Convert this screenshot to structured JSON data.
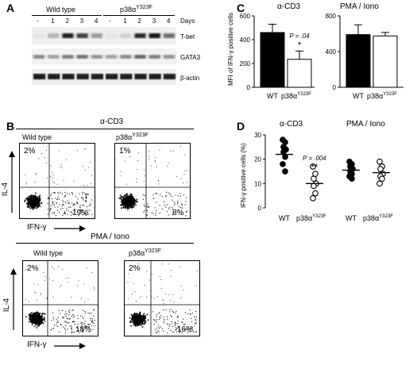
{
  "panel_a": {
    "label": "A",
    "group_wt": "Wild type",
    "group_mut": "p38α",
    "group_mut_sup": "Y323F",
    "days_label": "Days",
    "lane_labels": [
      "-",
      "1",
      "2",
      "3",
      "4",
      "-",
      "1",
      "2",
      "3",
      "4"
    ],
    "band_labels": [
      "T-bet",
      "GATA3",
      "β-actin"
    ]
  },
  "panel_b": {
    "label": "B",
    "stim_top": "α-CD3",
    "stim_bottom": "PMA / Iono",
    "ylabel": "IL-4",
    "xlabel": "IFN-γ",
    "plots": [
      {
        "title": "Wild type",
        "sup": "",
        "ul": "2%",
        "lr": "19%"
      },
      {
        "title": "p38α",
        "sup": "Y323F",
        "ul": "1%",
        "lr": "8%"
      },
      {
        "title": "Wild type",
        "sup": "",
        "ul": "2%",
        "lr": "18%"
      },
      {
        "title": "p38α",
        "sup": "Y323F",
        "ul": "2%",
        "lr": "16%"
      }
    ]
  },
  "panel_c": {
    "label": "C",
    "ylabel": "MFI of IFN-γ positive cells",
    "pvalue": "P = .04",
    "star": "*",
    "wt": "WT",
    "mut": "p38α",
    "mut_sup": "Y323F"
  },
  "panel_d": {
    "label": "D",
    "ylabel": "IFN-γ positive cells (%)",
    "pvalue": "P = .004",
    "star": "**",
    "wt": "WT",
    "mut": "p38α",
    "mut_sup": "Y323F"
  },
  "chart_data": [
    {
      "type": "bar",
      "title": "α-CD3",
      "categories": [
        "WT",
        "p38αY323F"
      ],
      "values": [
        460,
        235
      ],
      "errors": [
        70,
        70
      ],
      "yticks": [
        0,
        200,
        400,
        600
      ],
      "ylim": [
        0,
        600
      ],
      "ylabel": "MFI of IFN-γ positive cells",
      "colors": [
        "#000000",
        "#ffffff"
      ]
    },
    {
      "type": "bar",
      "title": "PMA / Iono",
      "categories": [
        "WT",
        "p38αY323F"
      ],
      "values": [
        590,
        575
      ],
      "errors": [
        110,
        40
      ],
      "yticks": [
        0,
        400,
        800
      ],
      "ylim": [
        0,
        800
      ],
      "colors": [
        "#000000",
        "#ffffff"
      ]
    },
    {
      "type": "scatter",
      "title": "α-CD3",
      "ylabel": "IFN-γ positive cells (%)",
      "yticks": [
        0,
        10,
        20,
        30
      ],
      "ylim": [
        0,
        30
      ],
      "series": [
        {
          "category": "WT",
          "values": [
            28,
            27,
            25,
            24,
            23,
            21,
            18,
            15
          ],
          "mean": 22,
          "filled": true
        },
        {
          "category": "p38αY323F",
          "values": [
            17,
            14,
            12,
            10,
            9,
            6,
            4
          ],
          "mean": 10,
          "filled": false
        }
      ]
    },
    {
      "type": "scatter",
      "title": "PMA / Iono",
      "yticks": [],
      "ylim": [
        0,
        30
      ],
      "series": [
        {
          "category": "WT",
          "values": [
            19,
            18,
            17,
            16,
            15,
            14,
            13,
            12
          ],
          "mean": 15.5,
          "filled": true
        },
        {
          "category": "p38αY323F",
          "values": [
            19,
            17,
            16,
            14,
            13,
            12,
            10
          ],
          "mean": 14.5,
          "filled": false
        }
      ]
    }
  ]
}
